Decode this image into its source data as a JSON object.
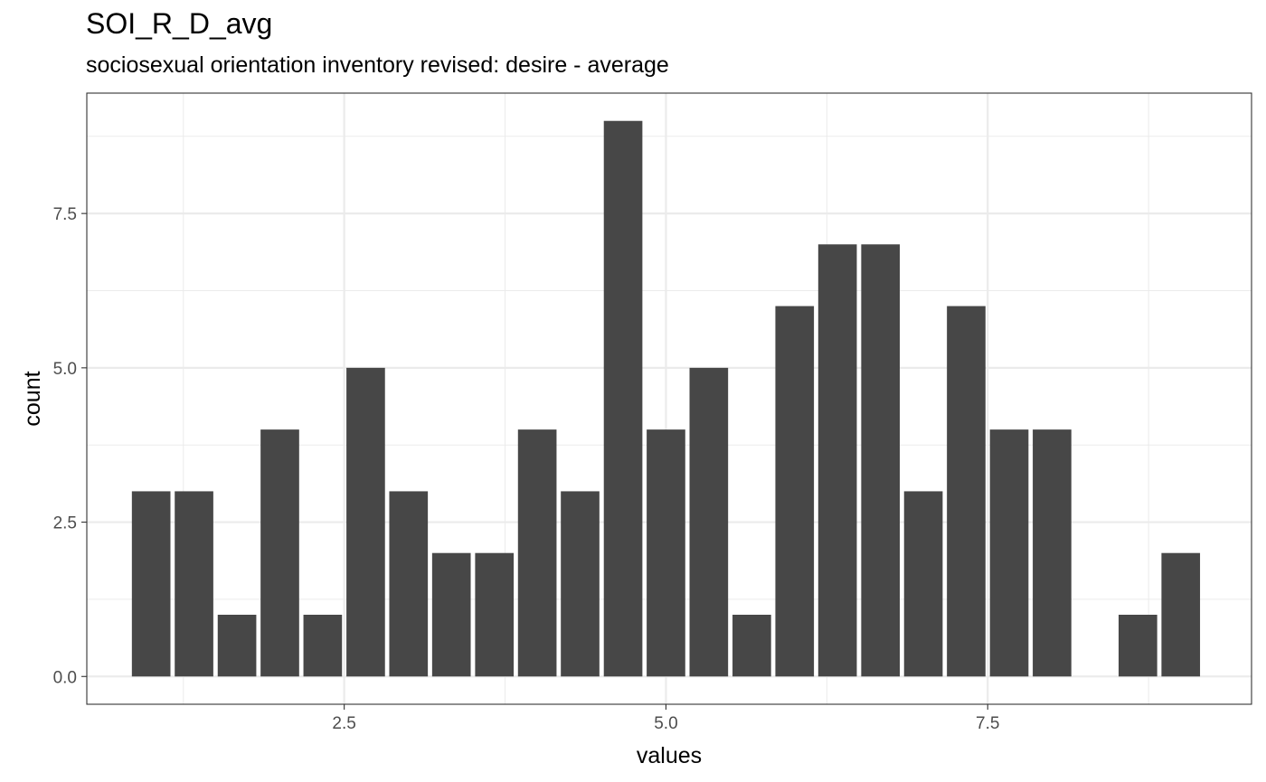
{
  "chart_data": {
    "type": "bar",
    "title": "SOI_R_D_avg",
    "subtitle": "sociosexual orientation inventory revised: desire - average",
    "xlabel": "values",
    "ylabel": "count",
    "xlim": [
      0.5,
      9.55
    ],
    "ylim": [
      -0.45,
      9.45
    ],
    "x_ticks": [
      2.5,
      5.0,
      7.5
    ],
    "x_tick_labels": [
      "2.5",
      "5.0",
      "7.5"
    ],
    "y_ticks": [
      0,
      2.5,
      5,
      7.5
    ],
    "y_tick_labels": [
      "0.0",
      "2.5",
      "5.0",
      "7.5"
    ],
    "bin_width": 0.333,
    "x": [
      1.0,
      1.333,
      1.667,
      2.0,
      2.333,
      2.667,
      3.0,
      3.333,
      3.667,
      4.0,
      4.333,
      4.667,
      5.0,
      5.333,
      5.667,
      6.0,
      6.333,
      6.667,
      7.0,
      7.333,
      7.667,
      8.0,
      8.667,
      9.0
    ],
    "values": [
      3,
      3,
      1,
      4,
      1,
      5,
      3,
      2,
      2,
      4,
      3,
      9,
      4,
      5,
      1,
      6,
      7,
      7,
      3,
      6,
      4,
      4,
      1,
      2
    ],
    "grid": true,
    "colors": {
      "bar": "#474747",
      "grid": "#ebebeb",
      "panel_border": "#333333",
      "tick_label": "#4d4d4d"
    }
  }
}
